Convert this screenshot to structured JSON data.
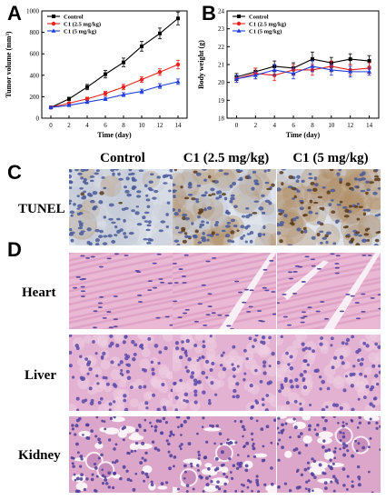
{
  "panels": {
    "a": "A",
    "b": "B",
    "c": "C",
    "d": "D"
  },
  "chart_data": [
    {
      "type": "line",
      "panel": "A",
      "xlabel": "Time (day)",
      "ylabel": "Tumor volume (mm³)",
      "x": [
        0,
        2,
        4,
        6,
        8,
        10,
        12,
        14
      ],
      "xlim": [
        -1,
        15
      ],
      "ylim": [
        0,
        1000
      ],
      "xticks": [
        0,
        2,
        4,
        6,
        8,
        10,
        12,
        14
      ],
      "yticks": [
        0,
        200,
        400,
        600,
        800,
        1000
      ],
      "legend_position": "top-left",
      "series": [
        {
          "name": "Control",
          "color": "#000000",
          "marker": "square",
          "values": [
            100,
            180,
            290,
            410,
            520,
            670,
            790,
            930
          ],
          "errors": [
            10,
            15,
            25,
            35,
            40,
            45,
            50,
            60
          ]
        },
        {
          "name": "C1 (2.5 mg/kg)",
          "color": "#e8211c",
          "marker": "circle",
          "values": [
            100,
            140,
            180,
            230,
            290,
            360,
            430,
            500
          ],
          "errors": [
            8,
            10,
            15,
            20,
            25,
            25,
            30,
            40
          ]
        },
        {
          "name": "C1 (5 mg/kg)",
          "color": "#1f3ddb",
          "marker": "triangle",
          "values": [
            100,
            120,
            150,
            180,
            220,
            250,
            300,
            340
          ],
          "errors": [
            8,
            8,
            12,
            15,
            18,
            20,
            22,
            25
          ]
        }
      ]
    },
    {
      "type": "line",
      "panel": "B",
      "xlabel": "Time (day)",
      "ylabel": "Body weight (g)",
      "x": [
        0,
        2,
        4,
        6,
        8,
        10,
        12,
        14
      ],
      "xlim": [
        -1,
        15
      ],
      "ylim": [
        18,
        24
      ],
      "xticks": [
        0,
        2,
        4,
        6,
        8,
        10,
        12,
        14
      ],
      "yticks": [
        18,
        19,
        20,
        21,
        22,
        23,
        24
      ],
      "legend_position": "top-left",
      "series": [
        {
          "name": "Control",
          "color": "#000000",
          "marker": "square",
          "values": [
            20.3,
            20.6,
            20.9,
            20.8,
            21.3,
            21.1,
            21.3,
            21.2
          ],
          "errors": [
            0.2,
            0.2,
            0.3,
            0.3,
            0.4,
            0.3,
            0.3,
            0.3
          ]
        },
        {
          "name": "C1 (2.5 mg/kg)",
          "color": "#e8211c",
          "marker": "circle",
          "values": [
            20.2,
            20.5,
            20.4,
            20.7,
            20.7,
            20.9,
            20.7,
            20.8
          ],
          "errors": [
            0.2,
            0.3,
            0.3,
            0.3,
            0.3,
            0.3,
            0.3,
            0.3
          ]
        },
        {
          "name": "C1 (5 mg/kg)",
          "color": "#1f3ddb",
          "marker": "triangle",
          "values": [
            20.2,
            20.4,
            20.7,
            20.5,
            20.9,
            20.7,
            20.6,
            20.6
          ],
          "errors": [
            0.2,
            0.2,
            0.3,
            0.3,
            0.3,
            0.3,
            0.3,
            0.2
          ]
        }
      ]
    }
  ],
  "histology": {
    "columns": [
      "Control",
      "C1 (2.5 mg/kg)",
      "C1 (5 mg/kg)"
    ],
    "rows": [
      "TUNEL",
      "Heart",
      "Liver",
      "Kidney"
    ]
  }
}
